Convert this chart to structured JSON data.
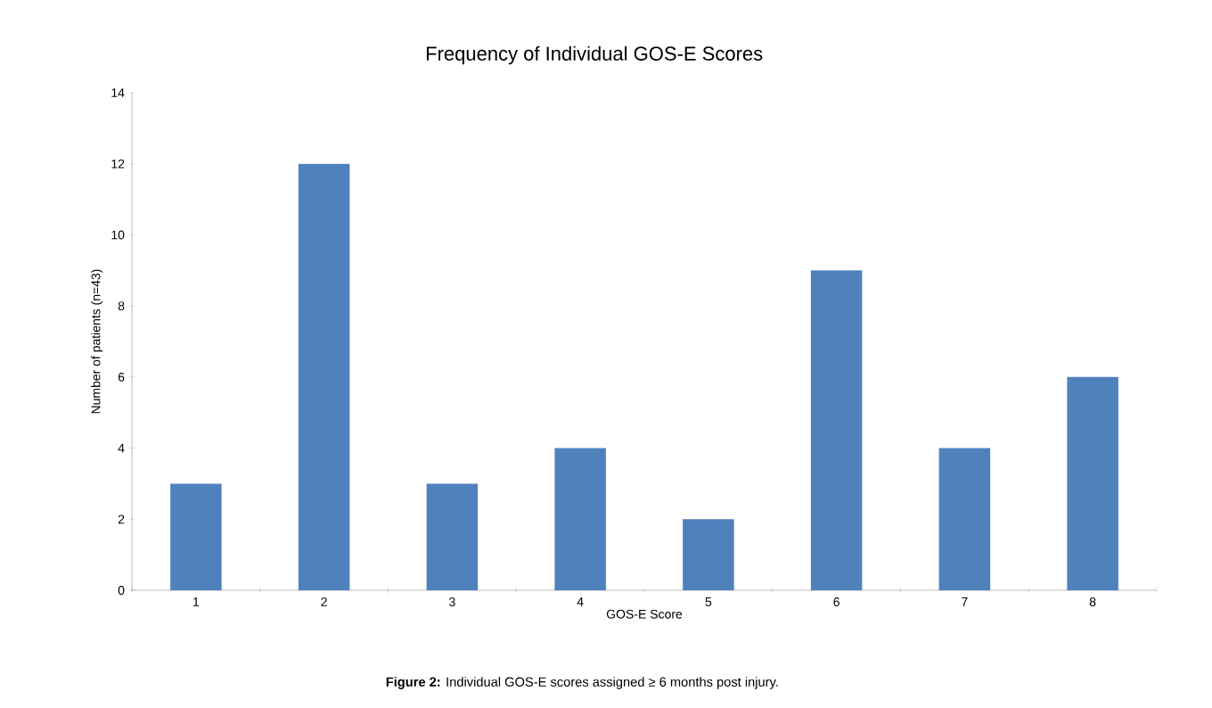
{
  "chart_data": {
    "type": "bar",
    "title": "Frequency of Individual GOS-E Scores",
    "xlabel": "GOS-E Score",
    "ylabel": "Number of patients (n=43)",
    "categories": [
      "1",
      "2",
      "3",
      "4",
      "5",
      "6",
      "7",
      "8"
    ],
    "values": [
      3,
      12,
      3,
      4,
      2,
      9,
      4,
      6
    ],
    "color": "#4f81bd",
    "ylim": [
      0,
      14
    ],
    "yticks": [
      0,
      2,
      4,
      6,
      8,
      10,
      12,
      14
    ],
    "annotations": [
      "**Figure 2:** Individual GOS-E scores assigned ≥ 6 months post injury."
    ]
  }
}
